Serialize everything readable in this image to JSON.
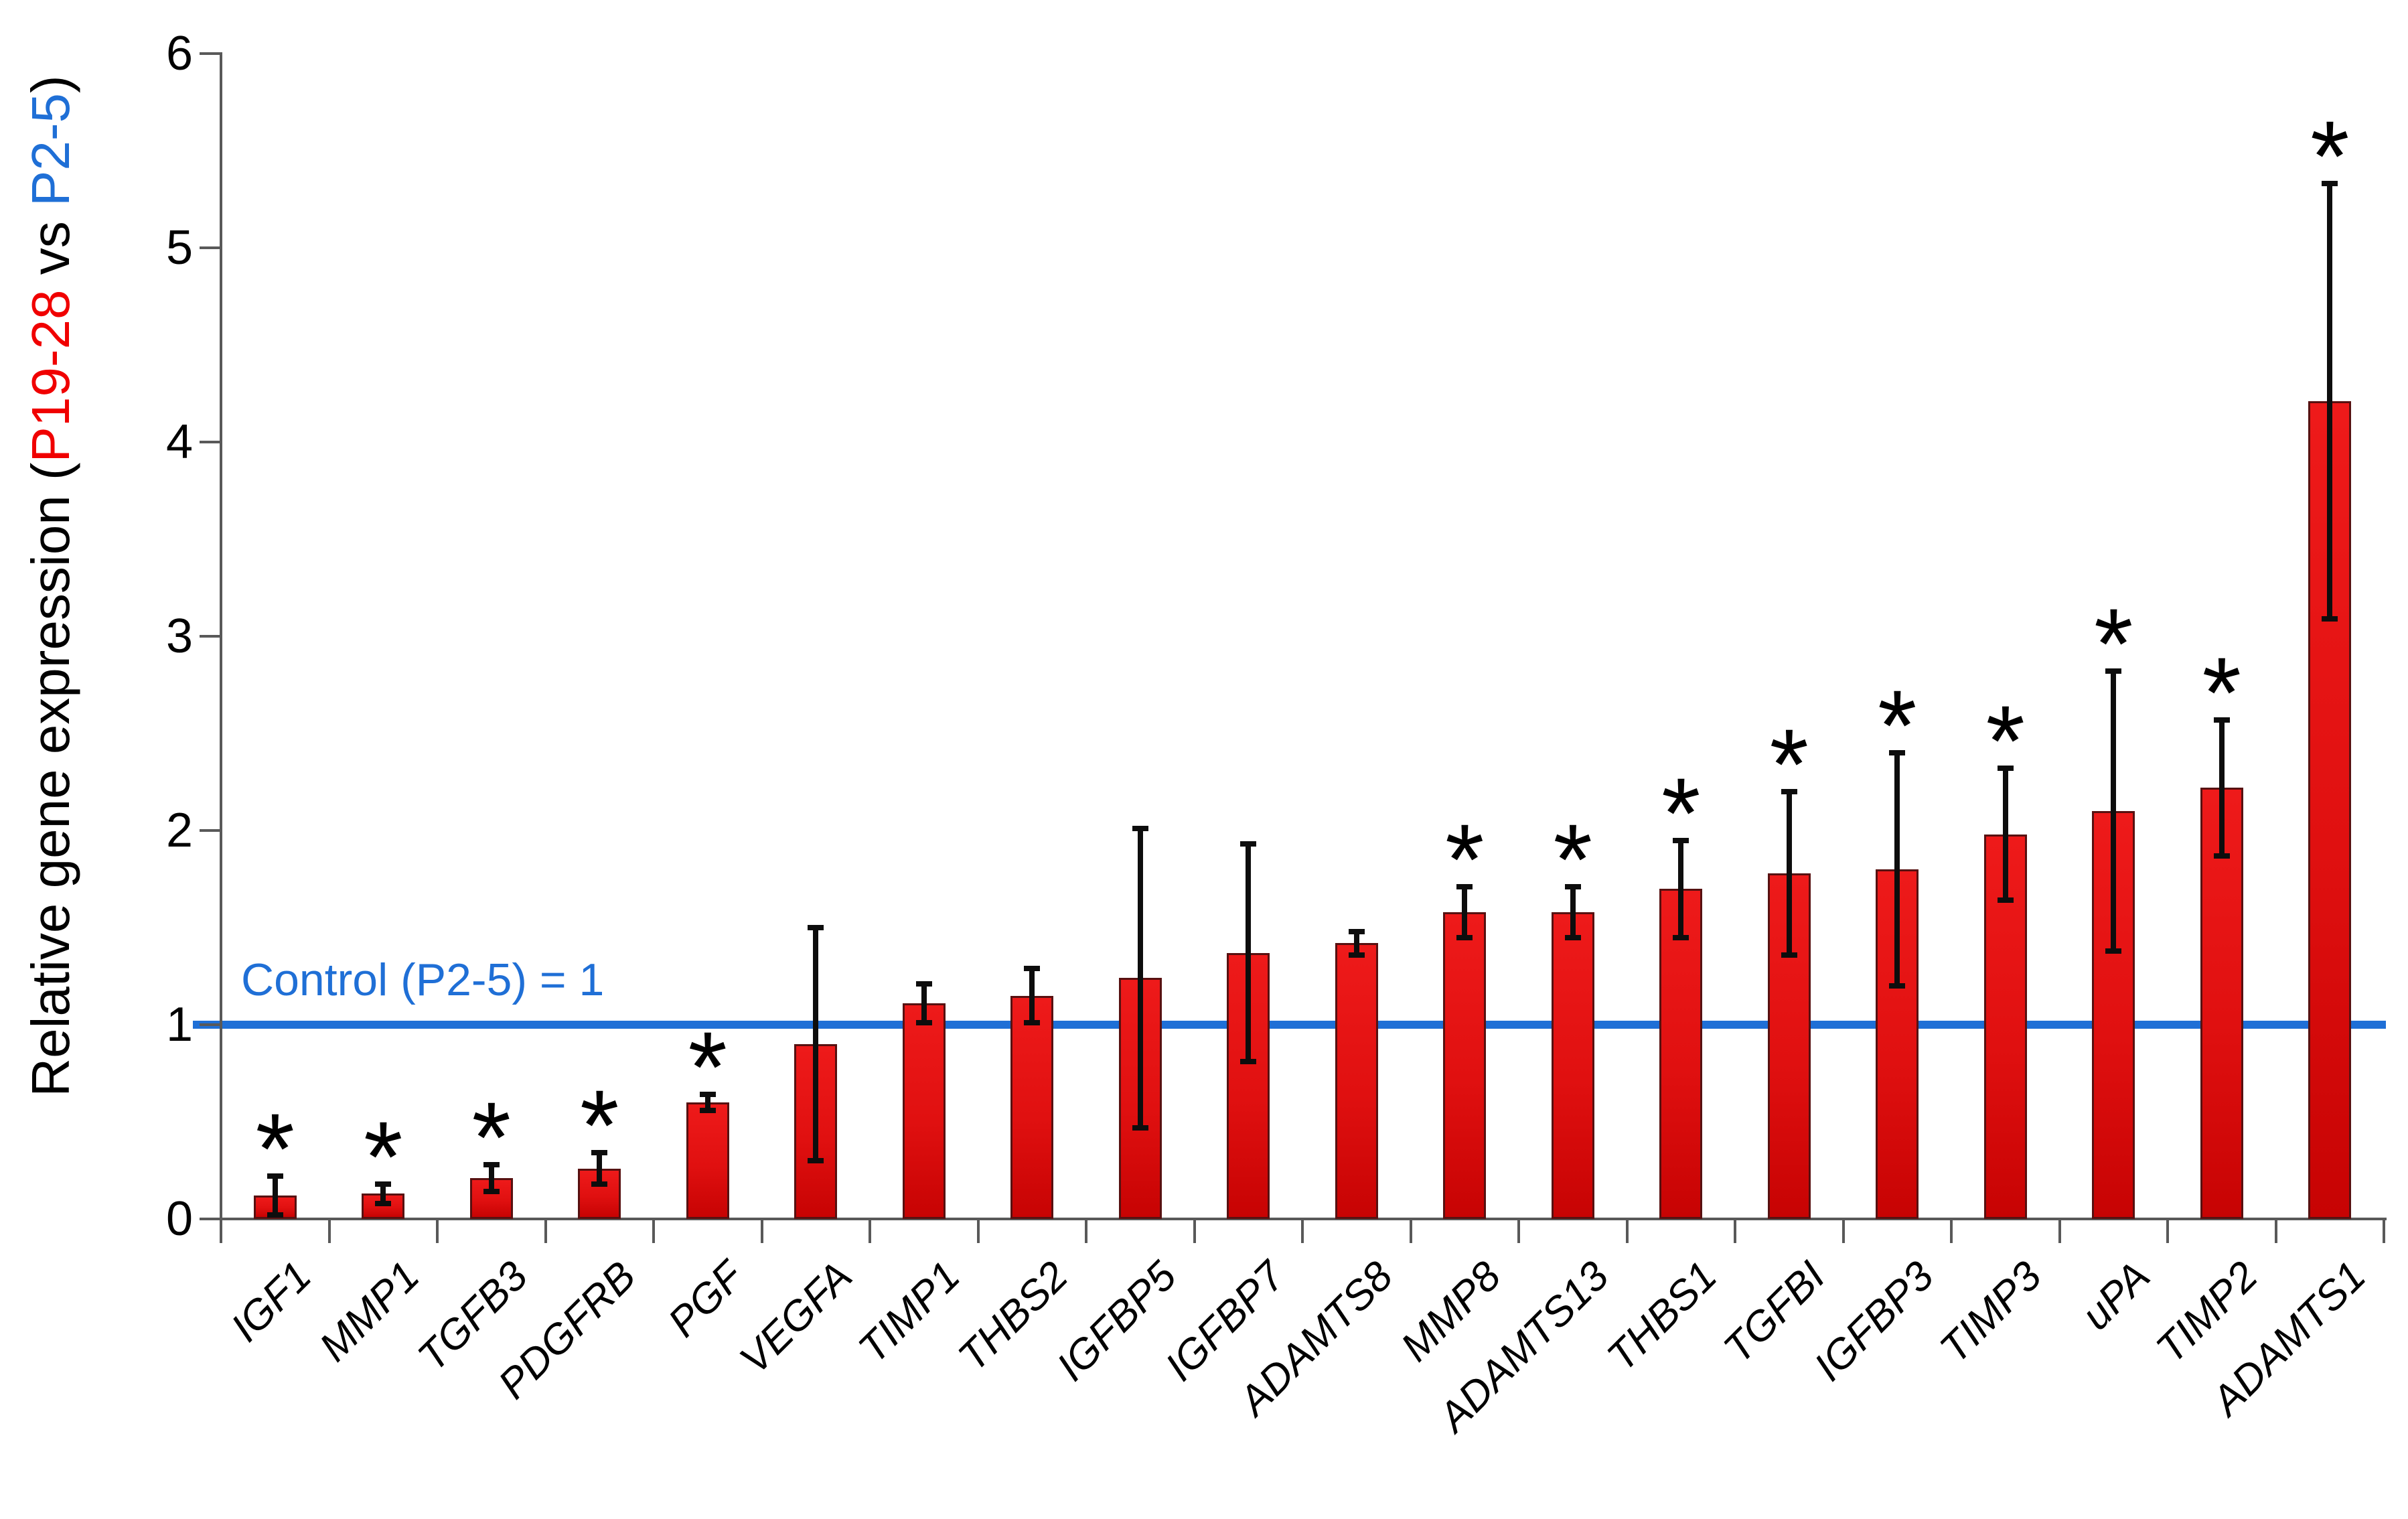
{
  "chart_data": {
    "type": "bar",
    "title": "",
    "ylabel_parts": {
      "pre": "Relative gene expression (",
      "group1": "P19-28",
      "mid": " vs ",
      "group2": "P2-5",
      "post": ")"
    },
    "control_label": "Control (P2-5) = 1",
    "significance_marker": "*",
    "categories": [
      "IGF1",
      "MMP1",
      "TGFB3",
      "PDGFRB",
      "PGF",
      "VEGFA",
      "TIMP1",
      "THBS2",
      "IGFBP5",
      "IGFBP7",
      "ADAMTS8",
      "MMP8",
      "ADAMTS13",
      "THBS1",
      "TGFBI",
      "IGFBP3",
      "TIMP3",
      "uPA",
      "TIMP2",
      "ADAMTS1"
    ],
    "values": [
      0.12,
      0.13,
      0.21,
      0.26,
      0.6,
      0.9,
      1.11,
      1.15,
      1.24,
      1.37,
      1.42,
      1.58,
      1.58,
      1.7,
      1.78,
      1.8,
      1.98,
      2.1,
      2.22,
      4.21
    ],
    "errors": [
      0.1,
      0.05,
      0.07,
      0.08,
      0.04,
      0.6,
      0.1,
      0.14,
      0.77,
      0.56,
      0.06,
      0.13,
      0.13,
      0.25,
      0.42,
      0.6,
      0.34,
      0.72,
      0.35,
      1.12
    ],
    "significant": [
      true,
      true,
      true,
      true,
      true,
      false,
      false,
      false,
      false,
      false,
      false,
      true,
      true,
      true,
      true,
      true,
      true,
      true,
      true,
      true
    ],
    "yticks": [
      0,
      1,
      2,
      3,
      4,
      5,
      6
    ],
    "ylim": [
      0,
      6
    ],
    "reference_line": {
      "value": 1
    },
    "grid": false,
    "legend": null,
    "colors": {
      "bar_fill_top": "#ee1a1a",
      "bar_fill_bottom": "#c70303",
      "bar_border": "#571111",
      "reference_line": "#1f6fd6",
      "control_text": "#1f6fd6",
      "ylabel_group1": "#f00000",
      "ylabel_group2": "#1f6fd6",
      "axis": "#595959",
      "text": "#000000",
      "error_bar": "#0d0d0d"
    }
  }
}
